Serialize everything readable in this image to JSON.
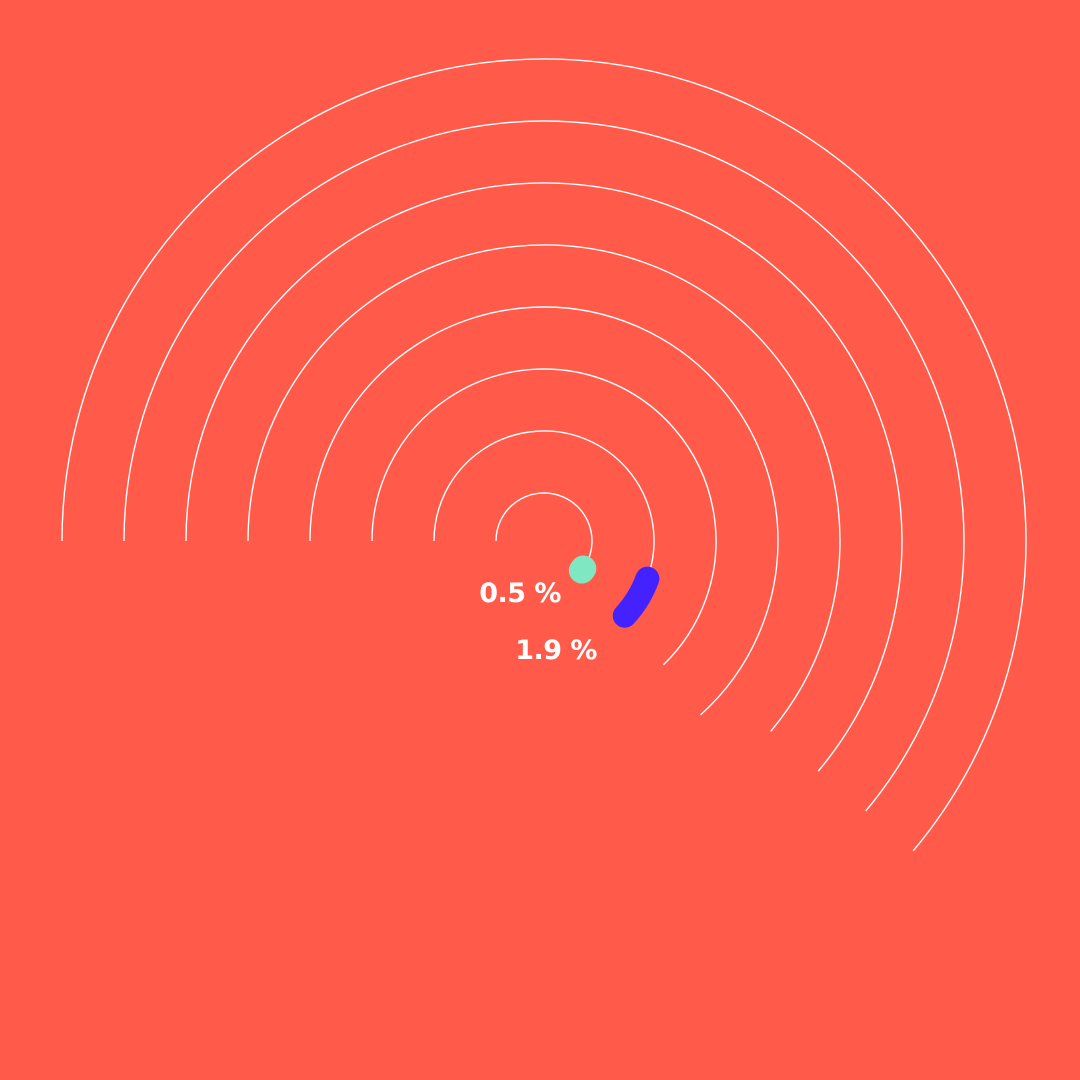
{
  "chart_data": {
    "type": "radial-bar",
    "series": [
      {
        "label": "0.5 %",
        "value": 0.5,
        "color": "#7FE8C2"
      },
      {
        "label": "1.9 %",
        "value": 1.9,
        "color": "#4422FF"
      }
    ],
    "track_count": 8
  },
  "colors": {
    "background": "#FF5A4A",
    "track": "#FFFFFF",
    "label": "#FFFFFF"
  }
}
